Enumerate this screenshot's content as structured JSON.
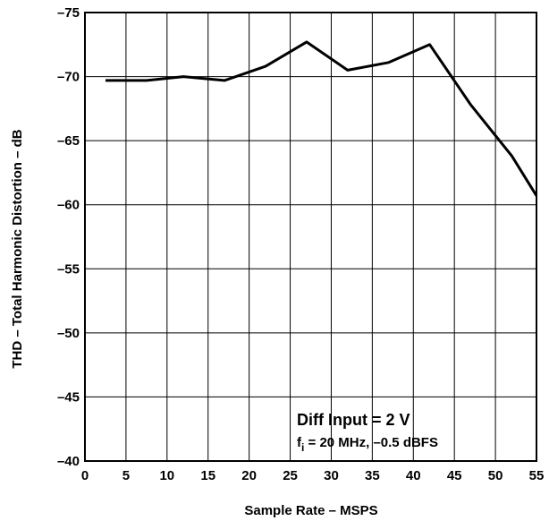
{
  "chart_data": {
    "type": "line",
    "xlabel": "Sample Rate – MSPS",
    "ylabel": "THD – Total Harmonic Distortion – dB",
    "xlim": [
      0,
      55
    ],
    "ylim": [
      -40,
      -75
    ],
    "x_ticks": [
      "0",
      "5",
      "10",
      "15",
      "20",
      "25",
      "30",
      "35",
      "40",
      "45",
      "50",
      "55"
    ],
    "y_ticks": [
      "–40",
      "–45",
      "–50",
      "–55",
      "–60",
      "–65",
      "–70",
      "–75"
    ],
    "y_tick_values": [
      -40,
      -45,
      -50,
      -55,
      -60,
      -65,
      -70,
      -75
    ],
    "grid": true,
    "series": [
      {
        "x": [
          2.5,
          7.5,
          12,
          17,
          22,
          27,
          32,
          37,
          42,
          47,
          52,
          55
        ],
        "values": [
          -69.7,
          -69.7,
          -70.0,
          -69.7,
          -70.8,
          -72.7,
          -70.5,
          -71.1,
          -72.5,
          -67.8,
          -63.8,
          -60.7
        ]
      }
    ],
    "annotation": {
      "line1": "Diff Input = 2 V",
      "line2_prefix": "f",
      "line2_sub": "i",
      "line2_rest": " = 20 MHz, –0.5 dBFS"
    }
  }
}
